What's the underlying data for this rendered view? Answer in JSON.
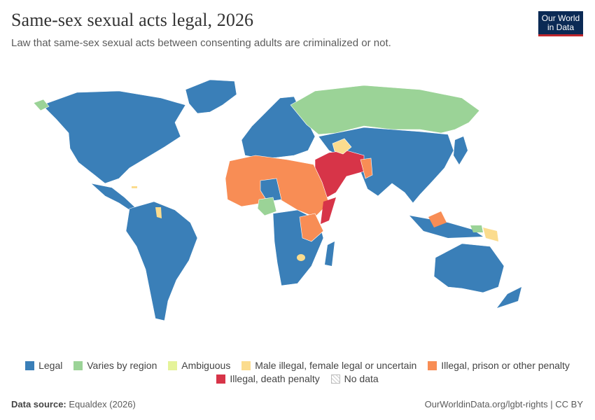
{
  "header": {
    "title": "Same-sex sexual acts legal, 2026",
    "subtitle": "Law that same-sex sexual acts between consenting adults are criminalized or not."
  },
  "logo": {
    "line1": "Our World",
    "line2": "in Data"
  },
  "legend": [
    {
      "label": "Legal",
      "color": "#3a7fb8"
    },
    {
      "label": "Varies by region",
      "color": "#9bd397"
    },
    {
      "label": "Ambiguous",
      "color": "#e5f39a"
    },
    {
      "label": "Male illegal, female legal or uncertain",
      "color": "#fbdc8e"
    },
    {
      "label": "Illegal, prison or other penalty",
      "color": "#f88d55"
    },
    {
      "label": "Illegal, death penalty",
      "color": "#d73448"
    },
    {
      "label": "No data",
      "color": "#ffffff"
    }
  ],
  "footer": {
    "source_label": "Data source:",
    "source_value": "Equaldex (2026)",
    "credit": "OurWorldinData.org/lgbt-rights | CC BY"
  }
}
